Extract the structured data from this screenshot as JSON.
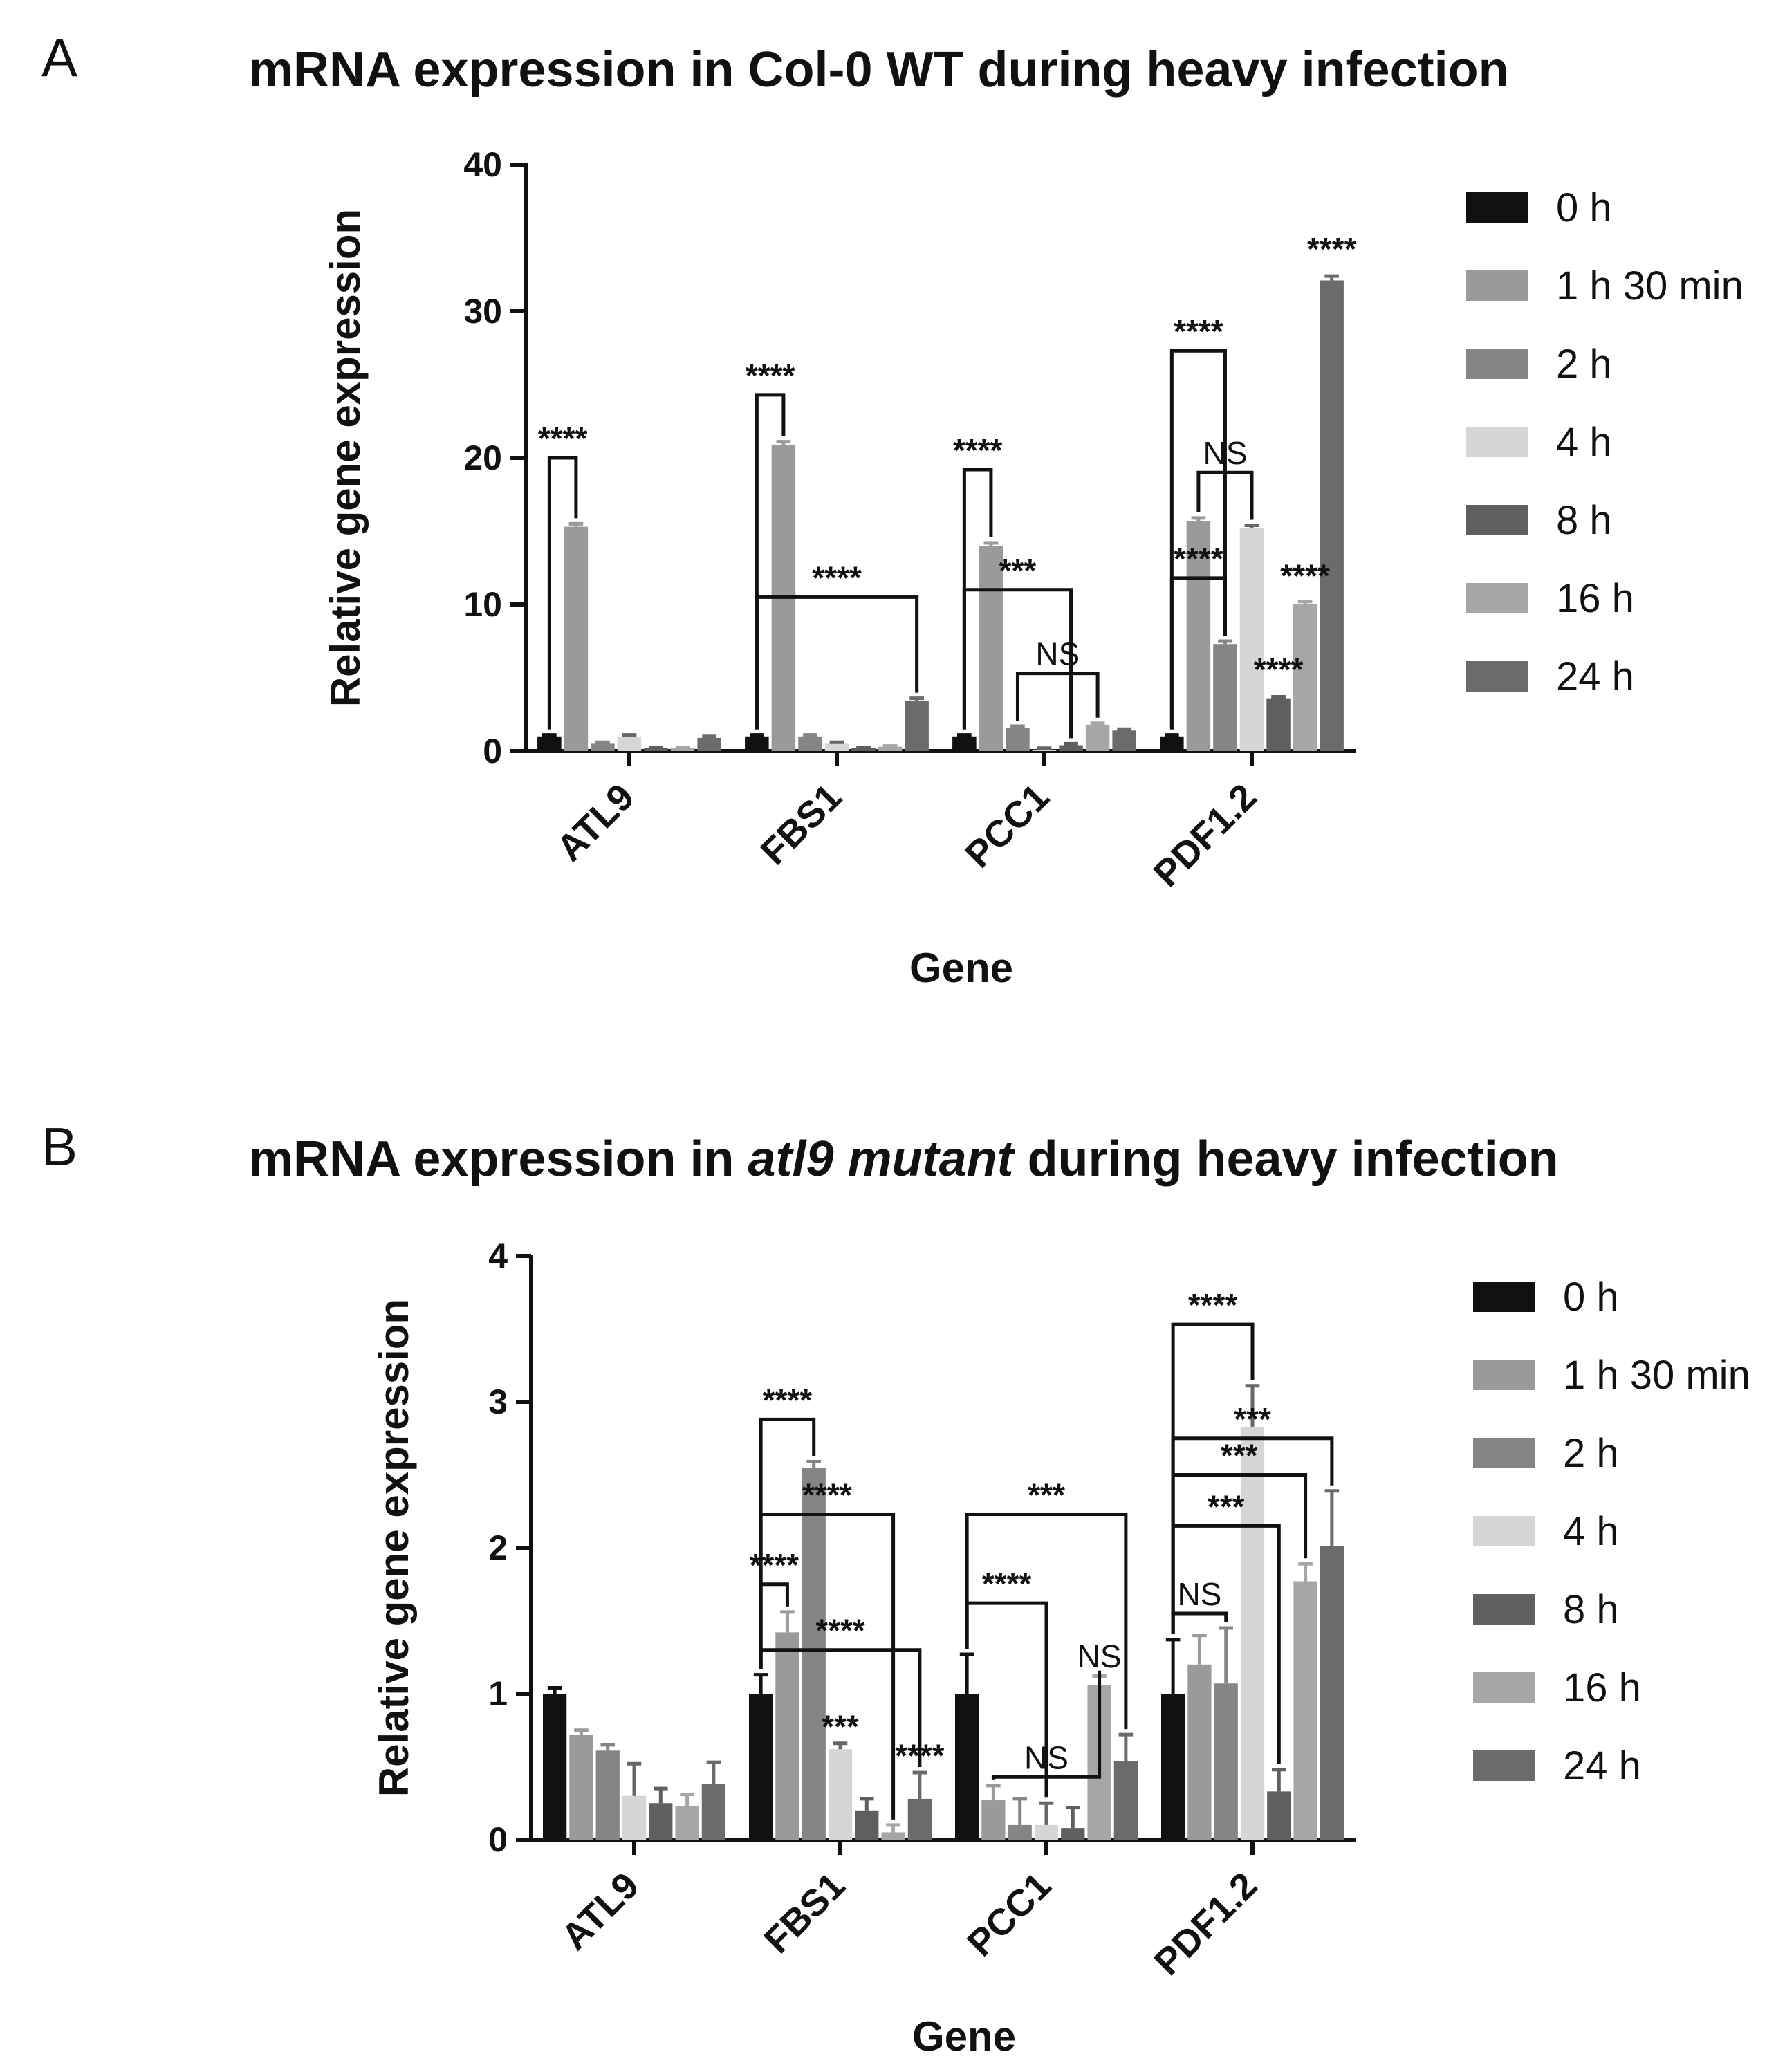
{
  "chart_data": [
    {
      "panel": "A",
      "type": "bar",
      "title": "mRNA expression in Col-0 WT during heavy infection",
      "xlabel": "Gene",
      "ylabel": "Relative gene expression",
      "ylim": [
        0,
        40
      ],
      "yticks": [
        "0",
        "10",
        "20",
        "30",
        "40"
      ],
      "categories": [
        "ATL9",
        "FBS1",
        "PCC1",
        "PDF1.2"
      ],
      "series": [
        {
          "name": "0 h",
          "color": "#111111",
          "values": [
            1.0,
            1.0,
            1.0,
            1.0
          ],
          "errors": [
            0.1,
            0.1,
            0.1,
            0.1
          ]
        },
        {
          "name": "1 h 30 min",
          "color": "#9a9a9c",
          "values": [
            15.3,
            20.9,
            14.0,
            15.7
          ],
          "errors": [
            0.2,
            0.2,
            0.2,
            0.2
          ]
        },
        {
          "name": "2 h",
          "color": "#858585",
          "values": [
            0.5,
            1.0,
            1.6,
            7.3
          ],
          "errors": [
            0.1,
            0.1,
            0.1,
            0.2
          ]
        },
        {
          "name": "4 h",
          "color": "#d6d6d6",
          "values": [
            1.0,
            0.5,
            0.1,
            15.2
          ],
          "errors": [
            0.1,
            0.1,
            0.1,
            0.2
          ]
        },
        {
          "name": "8 h",
          "color": "#5f5f5f",
          "values": [
            0.2,
            0.2,
            0.4,
            3.6
          ],
          "errors": [
            0.05,
            0.05,
            0.1,
            0.1
          ]
        },
        {
          "name": "16 h",
          "color": "#a6a6a6",
          "values": [
            0.2,
            0.3,
            1.8,
            10.0
          ],
          "errors": [
            0.05,
            0.05,
            0.1,
            0.2
          ]
        },
        {
          "name": "24 h",
          "color": "#6b6b6b",
          "values": [
            0.9,
            3.4,
            1.4,
            32.1
          ],
          "errors": [
            0.1,
            0.2,
            0.1,
            0.3
          ]
        }
      ],
      "significance": [
        {
          "label": "****",
          "cat": 0,
          "from": 0,
          "to": 1,
          "y": 20
        },
        {
          "label": "****",
          "cat": 1,
          "from": 0,
          "to": 1,
          "y": 24.3
        },
        {
          "label": "****",
          "cat": 1,
          "from": 0,
          "to": 6,
          "y": 10.5
        },
        {
          "label": "****",
          "cat": 2,
          "from": 0,
          "to": 1,
          "y": 19.2
        },
        {
          "label": "***",
          "cat": 2,
          "from": 0,
          "to": 4,
          "y": 11.0
        },
        {
          "label": "NS",
          "cat": 2,
          "from": 2,
          "to": 5,
          "y": 5.3
        },
        {
          "label": "****",
          "cat": 3,
          "from": 0,
          "to": 2,
          "y": 27.3
        },
        {
          "label": "NS",
          "cat": 3,
          "from": 1,
          "to": 3,
          "y": 19.0
        },
        {
          "label": "****",
          "cat": 3,
          "from": 0,
          "to": 2,
          "y": 11.8
        }
      ],
      "point_labels": [
        {
          "label": "****",
          "cat": 3,
          "bar": 6,
          "y": 33.5
        },
        {
          "label": "****",
          "cat": 3,
          "bar": 5,
          "y": 11.2
        },
        {
          "label": "****",
          "cat": 3,
          "bar": 4,
          "y": 4.8
        }
      ]
    },
    {
      "panel": "B",
      "type": "bar",
      "title": "mRNA expression in atl9 mutant during heavy infection",
      "xlabel": "Gene",
      "ylabel": "Relative gene expression",
      "ylim": [
        0,
        4
      ],
      "yticks": [
        "0",
        "1",
        "2",
        "3",
        "4"
      ],
      "categories": [
        "ATL9",
        "FBS1",
        "PCC1",
        "PDF1.2"
      ],
      "series": [
        {
          "name": "0 h",
          "color": "#111111",
          "values": [
            1.0,
            1.0,
            1.0,
            1.0
          ],
          "errors": [
            0.04,
            0.13,
            0.27,
            0.37
          ]
        },
        {
          "name": "1 h 30 min",
          "color": "#9a9a9c",
          "values": [
            0.72,
            1.42,
            0.27,
            1.2
          ],
          "errors": [
            0.03,
            0.14,
            0.1,
            0.2
          ]
        },
        {
          "name": "2 h",
          "color": "#858585",
          "values": [
            0.61,
            2.55,
            0.1,
            1.07
          ],
          "errors": [
            0.04,
            0.04,
            0.18,
            0.38
          ]
        },
        {
          "name": "4 h",
          "color": "#d6d6d6",
          "values": [
            0.3,
            0.62,
            0.1,
            2.83
          ],
          "errors": [
            0.22,
            0.04,
            0.15,
            0.28
          ]
        },
        {
          "name": "8 h",
          "color": "#5f5f5f",
          "values": [
            0.25,
            0.2,
            0.08,
            0.33
          ],
          "errors": [
            0.1,
            0.08,
            0.14,
            0.15
          ]
        },
        {
          "name": "16 h",
          "color": "#a6a6a6",
          "values": [
            0.23,
            0.05,
            1.06,
            1.77
          ],
          "errors": [
            0.08,
            0.05,
            0.06,
            0.12
          ]
        },
        {
          "name": "24 h",
          "color": "#6b6b6b",
          "values": [
            0.38,
            0.28,
            0.54,
            2.01
          ],
          "errors": [
            0.15,
            0.18,
            0.18,
            0.38
          ]
        }
      ],
      "significance": [
        {
          "label": "****",
          "cat": 1,
          "from": 0,
          "to": 2,
          "y": 2.88
        },
        {
          "label": "****",
          "cat": 1,
          "from": 0,
          "to": 5,
          "y": 2.23
        },
        {
          "label": "****",
          "cat": 1,
          "from": 0,
          "to": 1,
          "y": 1.75
        },
        {
          "label": "****",
          "cat": 1,
          "from": 0,
          "to": 6,
          "y": 1.3
        },
        {
          "label": "***",
          "cat": 2,
          "from": 0,
          "to": 6,
          "y": 2.23
        },
        {
          "label": "****",
          "cat": 2,
          "from": 0,
          "to": 3,
          "y": 1.62
        },
        {
          "label": "NS",
          "cat": 2,
          "from": 1,
          "to": 5,
          "y": 0.43
        },
        {
          "label": "****",
          "cat": 3,
          "from": 0,
          "to": 3,
          "y": 3.53
        },
        {
          "label": "***",
          "cat": 3,
          "from": 0,
          "to": 6,
          "y": 2.75
        },
        {
          "label": "***",
          "cat": 3,
          "from": 0,
          "to": 5,
          "y": 2.5
        },
        {
          "label": "***",
          "cat": 3,
          "from": 0,
          "to": 4,
          "y": 2.15
        },
        {
          "label": "NS",
          "cat": 3,
          "from": 0,
          "to": 2,
          "y": 1.55
        }
      ],
      "point_labels": [
        {
          "label": "***",
          "cat": 1,
          "bar": 3,
          "y": 0.7
        },
        {
          "label": "****",
          "cat": 1,
          "bar": 6,
          "y": 0.5
        },
        {
          "label": "NS",
          "cat": 2,
          "bar": 5,
          "y": 1.18
        }
      ]
    }
  ]
}
